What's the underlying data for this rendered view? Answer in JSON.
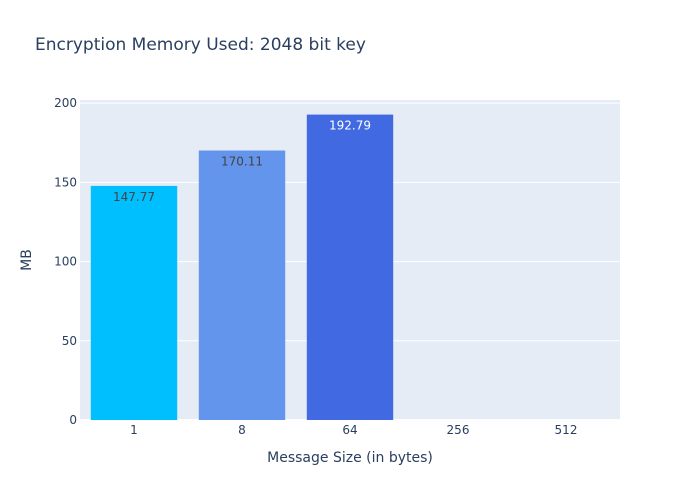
{
  "chart_data": {
    "type": "bar",
    "title": "Encryption Memory Used: 2048 bit key",
    "xlabel": "Message Size (in bytes)",
    "ylabel": "MB",
    "categories": [
      "1",
      "8",
      "64",
      "256",
      "512"
    ],
    "values": [
      147.77,
      170.11,
      192.79,
      0,
      0
    ],
    "data_labels": [
      "147.77",
      "170.11",
      "192.79",
      "",
      ""
    ],
    "colors": [
      "#00bfff",
      "#6495ed",
      "#4169e1",
      "#4169e1",
      "#4169e1"
    ],
    "label_colors": [
      "#444444",
      "#444444",
      "#ffffff",
      "#ffffff",
      "#ffffff"
    ],
    "ylim": [
      0,
      202
    ],
    "yticks": [
      0,
      50,
      100,
      150,
      200
    ],
    "grid": true,
    "legend": false,
    "plot_bg": "#e5ecf6",
    "text_color": "#2a3f5f"
  }
}
